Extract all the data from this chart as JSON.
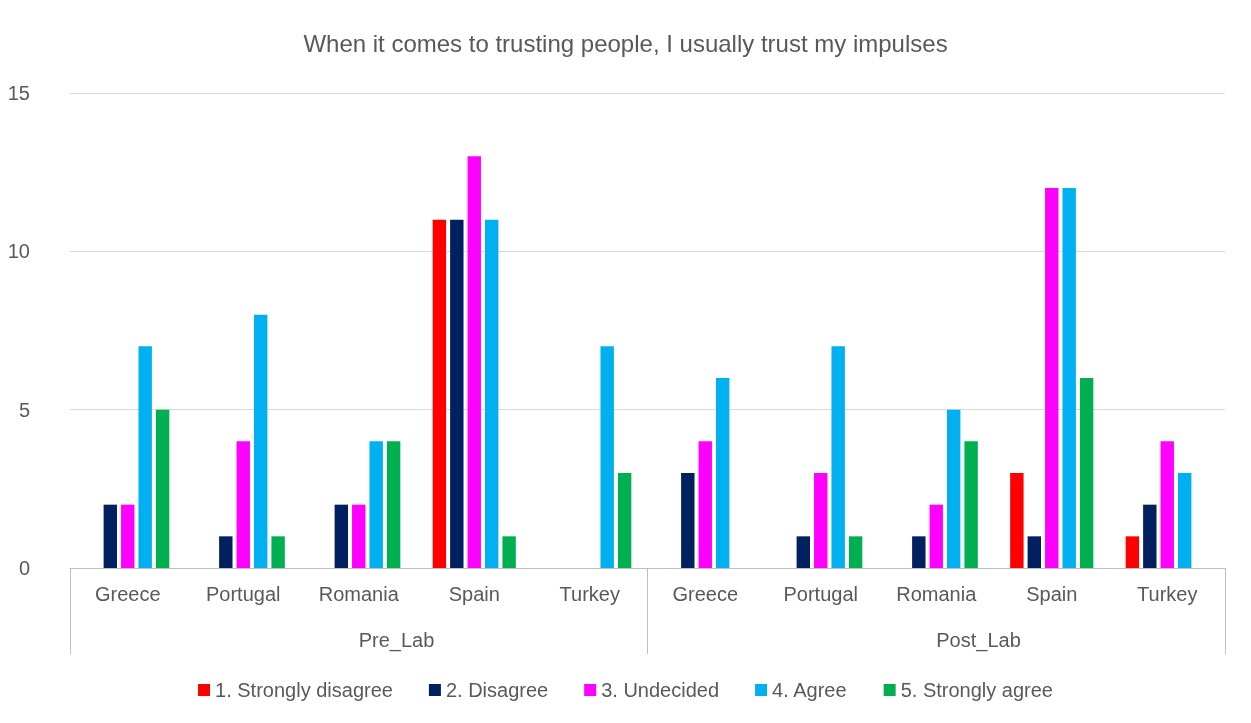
{
  "chart_data": {
    "type": "bar",
    "title": "When it comes to trusting people, I usually trust my impulses",
    "categories": [
      "Greece",
      "Portugal",
      "Romania",
      "Spain",
      "Turkey",
      "Greece",
      "Portugal",
      "Romania",
      "Spain",
      "Turkey"
    ],
    "annotations": [
      "Pre_Lab",
      "Post_Lab"
    ],
    "series": [
      {
        "name": "1. Strongly disagree",
        "color": "#ff0000",
        "values": [
          null,
          null,
          null,
          11,
          null,
          null,
          null,
          null,
          3,
          1
        ]
      },
      {
        "name": "2. Disagree",
        "color": "#002060",
        "values": [
          2,
          1,
          2,
          11,
          null,
          3,
          1,
          1,
          1,
          2
        ]
      },
      {
        "name": "3. Undecided",
        "color": "#ff00ff",
        "values": [
          2,
          4,
          2,
          13,
          null,
          4,
          3,
          2,
          12,
          4
        ]
      },
      {
        "name": "4. Agree",
        "color": "#00b0f0",
        "values": [
          7,
          8,
          4,
          11,
          7,
          6,
          7,
          5,
          12,
          3
        ]
      },
      {
        "name": "5. Strongly agree",
        "color": "#00b050",
        "values": [
          5,
          1,
          4,
          1,
          3,
          null,
          1,
          4,
          6,
          null
        ]
      }
    ],
    "ylim": [
      0,
      15
    ],
    "yticks": [
      0,
      5,
      10,
      15
    ],
    "grid": "y",
    "legend": "bottom"
  }
}
